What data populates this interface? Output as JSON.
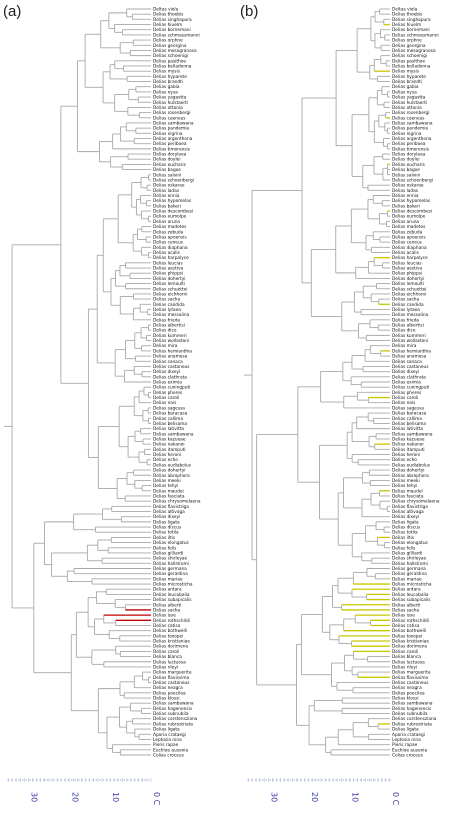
{
  "panels": [
    {
      "label": "(a)"
    },
    {
      "label": "(b)"
    }
  ],
  "axis": {
    "ticks": [
      "30",
      "20",
      "10",
      "0 C"
    ],
    "color": "#3a3aa0"
  },
  "colors": {
    "branch": "#a8a8a8",
    "branch_dark": "#6e6e6e",
    "highlight_a": "#c00000",
    "highlight_b": "#c8c800"
  },
  "tips": [
    "Deltas viola",
    "Delias thoebis",
    "Delias singhapura",
    "Delias hiuelm",
    "Delias bornemani",
    "Delias schmassmanni",
    "Delias orphne",
    "Delias georgina",
    "Delias mesogranosa",
    "Delias schoenigi",
    "Delias pasithoe",
    "Delias belladonna",
    "Delias mysis",
    "Delias hyparete",
    "Delias brandti",
    "Delias gabia",
    "Delias nysa",
    "Delias yagastta",
    "Delias hulstaerti",
    "Delias ottonia",
    "Delias rosenbergi",
    "Delias caeneus",
    "Delias sambawana",
    "Delias pandemia",
    "Delias nigrina",
    "Delias argenthona",
    "Delias periboea",
    "Delias timorensis",
    "Delias dorylaea",
    "Delias doylei",
    "Delias eucharis",
    "Delias bagoe",
    "Delias salvini",
    "Delias schoenbergi",
    "Delias oskarae",
    "Delias ladas",
    "Delias ennia",
    "Delias hypomelas",
    "Delias bakeri",
    "Delias descombesi",
    "Delias eumolpe",
    "Delias aruna",
    "Delias madetes",
    "Delias zebuda",
    "Delias apoensis",
    "Delias ceneus",
    "Delias diaphana",
    "Delias acalis",
    "Delias harpalyce",
    "Delias leucias",
    "Delias aestiva",
    "Delias phippsi",
    "Delias dohertyi",
    "Delias lemoulti",
    "Delias schuettei",
    "Delias eichhorni",
    "Delias sacha",
    "Delias candida",
    "Delias lytaea",
    "Delias messalina",
    "Delias frieda",
    "Delias albertisi",
    "Delias dice",
    "Delias kummeri",
    "Delias wollastoni",
    "Delias mira",
    "Delias hemianthia",
    "Delias anamesa",
    "Delias sanaca",
    "Delias castaneus",
    "Delias dixeyi",
    "Delias clathrata",
    "Delias eximia",
    "Delias cuningputi",
    "Delias pheres",
    "Delias caroli",
    "Delias nais",
    "Delias sagessa",
    "Delias baracasa",
    "Delias callima",
    "Delias belisama",
    "Delias lativitta",
    "Delias sambawana",
    "Delias kazueae",
    "Delias nakanoi",
    "Delias itamputi",
    "Delias heroni",
    "Delias echo",
    "Delias eudiabolus",
    "Delias dohertyi",
    "Delias abrophora",
    "Delias meeki",
    "Delias tehyi",
    "Delias maudei",
    "Delias fasciata",
    "Delias chrysomelaena",
    "Delias flavistriga",
    "Delias altivaga",
    "Delias dixeyi",
    "Delias ligata",
    "Delias discus",
    "Delias totila",
    "Delias iltis",
    "Delias elongatus",
    "Delias felis",
    "Delias gilliardi",
    "Delias shirleyae",
    "Delias hallstromi",
    "Delias germana",
    "Delias geraldina",
    "Delias mariae",
    "Delias microsticha",
    "Delias antara",
    "Delias leucobalia",
    "Delias subapicalis",
    "Delias alberti",
    "Delias sacha",
    "Delias isse",
    "Delias rothschildi",
    "Delias catisa",
    "Delias bothwelli",
    "Delias toxopei",
    "Delias kristianiae",
    "Delias dorimene",
    "Delias caroli",
    "Delias blanca",
    "Delias luctuosa",
    "Delias rileyi",
    "Delias marguerita",
    "Delias flavissima",
    "Delias castaneus",
    "Delias neagra",
    "Delias poecilea",
    "Delias klossi",
    "Delias sambawana",
    "Delias hagenensis",
    "Delias subnubila",
    "Delias carstensziana",
    "Delias rubrostriata",
    "Delias ligata",
    "Aporia crataegi",
    "Leptosia nina",
    "Pieris rapae",
    "Euchloe ausonia",
    "Colias croceus"
  ]
}
